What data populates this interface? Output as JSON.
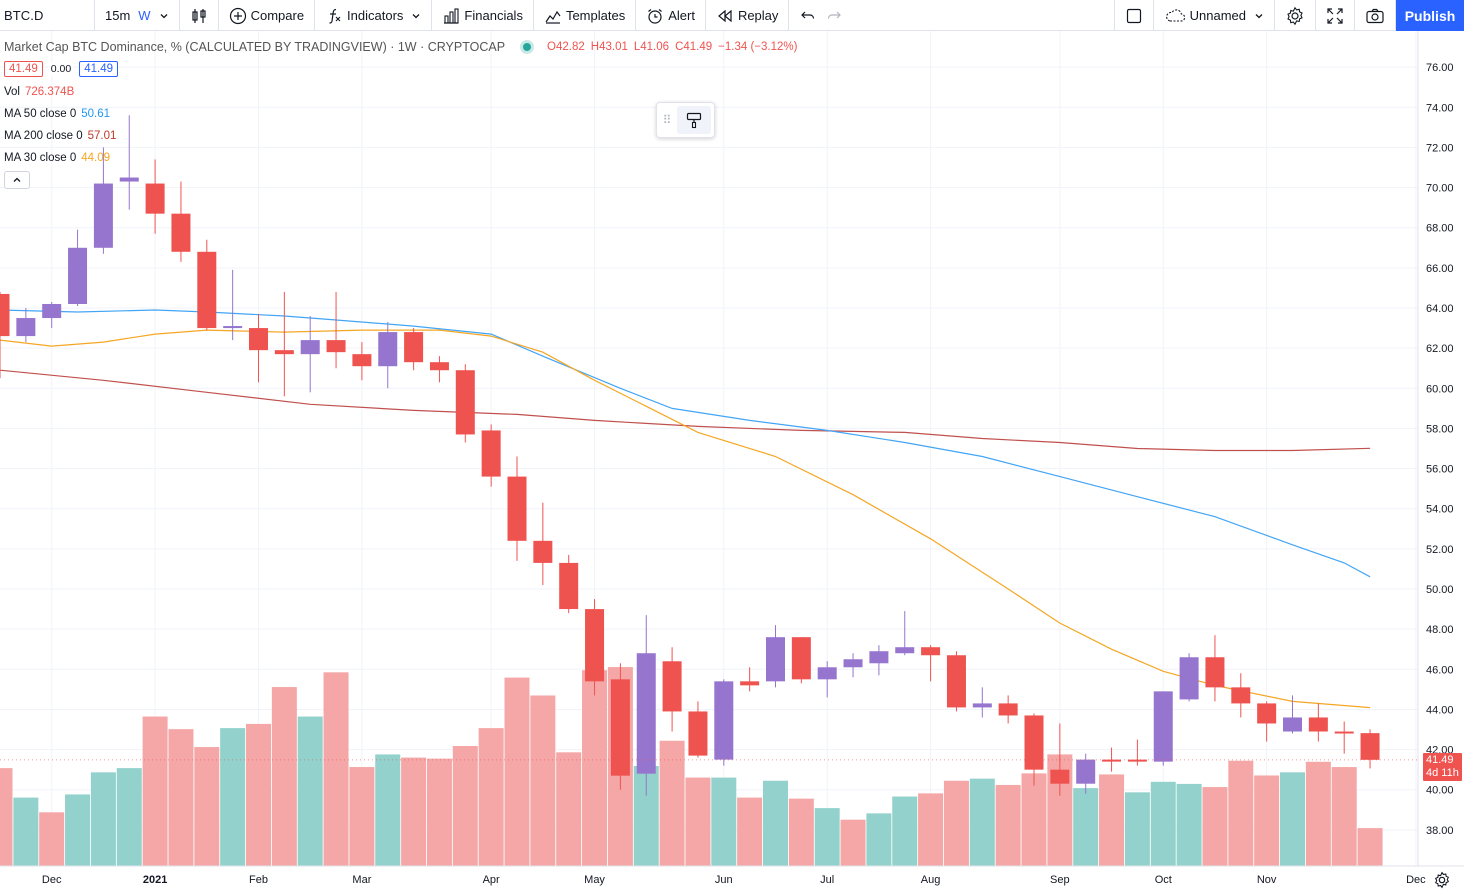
{
  "toolbar": {
    "symbol": "BTC.D",
    "interval": "15m",
    "interval_active": "W",
    "compare": "Compare",
    "indicators": "Indicators",
    "financials": "Financials",
    "templates": "Templates",
    "alert": "Alert",
    "replay": "Replay",
    "layout_name": "Unnamed",
    "publish": "Publish"
  },
  "legend": {
    "title": "Market Cap BTC Dominance, % (CALCULATED BY TRADINGVIEW) · 1W · CRYPTOCAP",
    "open": "O42.82",
    "high": "H43.01",
    "low": "L41.06",
    "close": "C41.49",
    "change": "−1.34 (−3.12%)",
    "sell_price": "41.49",
    "spread": "0.00",
    "buy_price": "41.49",
    "vol_label": "Vol",
    "vol_value": "726.374B",
    "ma50_label": "MA 50 close 0",
    "ma50_value": "50.61",
    "ma200_label": "MA 200 close 0",
    "ma200_value": "57.01",
    "ma30_label": "MA 30 close 0",
    "ma30_value": "44.09"
  },
  "axis": {
    "last_price": "41.49",
    "countdown": "4d 11h"
  },
  "colors": {
    "up": "#9575cd",
    "down": "#ef5350",
    "vol_up": "#93d2cc",
    "vol_down": "#f4a7a6",
    "ma50": "#42a5f5",
    "ma200": "#c0504d",
    "ma30": "#f5a623",
    "grid": "#f0f3fa"
  },
  "chart_data": {
    "type": "candlestick",
    "ylim": [
      36.2,
      77.8
    ],
    "y_ticks": [
      "38.00",
      "40.00",
      "42.00",
      "44.00",
      "46.00",
      "48.00",
      "50.00",
      "52.00",
      "54.00",
      "56.00",
      "58.00",
      "60.00",
      "62.00",
      "64.00",
      "66.00",
      "68.00",
      "70.00",
      "72.00",
      "74.00",
      "76.00"
    ],
    "x_labels": [
      "Dec",
      "2021",
      "Feb",
      "Mar",
      "Apr",
      "May",
      "Jun",
      "Jul",
      "Aug",
      "Sep",
      "Oct",
      "Nov",
      "Dec"
    ],
    "candles": [
      {
        "o": 64.7,
        "h": 64.8,
        "l": 60.5,
        "c": 62.6
      },
      {
        "o": 62.6,
        "h": 64.0,
        "l": 62.3,
        "c": 63.5
      },
      {
        "o": 63.5,
        "h": 64.3,
        "l": 63.0,
        "c": 64.2
      },
      {
        "o": 64.2,
        "h": 67.9,
        "l": 64.1,
        "c": 67.0
      },
      {
        "o": 67.0,
        "h": 72.0,
        "l": 66.7,
        "c": 70.2
      },
      {
        "o": 70.3,
        "h": 73.6,
        "l": 68.9,
        "c": 70.5
      },
      {
        "o": 70.2,
        "h": 71.4,
        "l": 67.7,
        "c": 68.7
      },
      {
        "o": 68.7,
        "h": 70.3,
        "l": 66.3,
        "c": 66.8
      },
      {
        "o": 66.8,
        "h": 67.4,
        "l": 62.9,
        "c": 63.0
      },
      {
        "o": 63.0,
        "h": 65.9,
        "l": 62.4,
        "c": 63.1
      },
      {
        "o": 63.0,
        "h": 63.7,
        "l": 60.3,
        "c": 61.9
      },
      {
        "o": 61.9,
        "h": 64.8,
        "l": 59.6,
        "c": 61.7
      },
      {
        "o": 61.7,
        "h": 63.6,
        "l": 59.8,
        "c": 62.4
      },
      {
        "o": 62.4,
        "h": 64.8,
        "l": 61.0,
        "c": 61.8
      },
      {
        "o": 61.7,
        "h": 62.3,
        "l": 60.4,
        "c": 61.1
      },
      {
        "o": 61.1,
        "h": 63.3,
        "l": 60.0,
        "c": 62.8
      },
      {
        "o": 62.8,
        "h": 63.0,
        "l": 60.9,
        "c": 61.3
      },
      {
        "o": 61.3,
        "h": 61.6,
        "l": 60.3,
        "c": 60.9
      },
      {
        "o": 60.9,
        "h": 61.2,
        "l": 57.3,
        "c": 57.7
      },
      {
        "o": 57.9,
        "h": 58.2,
        "l": 55.1,
        "c": 55.6
      },
      {
        "o": 55.6,
        "h": 56.6,
        "l": 51.4,
        "c": 52.4
      },
      {
        "o": 52.4,
        "h": 54.3,
        "l": 50.2,
        "c": 51.3
      },
      {
        "o": 51.3,
        "h": 51.7,
        "l": 48.8,
        "c": 49.0
      },
      {
        "o": 49.0,
        "h": 49.5,
        "l": 44.7,
        "c": 45.4
      },
      {
        "o": 45.5,
        "h": 46.3,
        "l": 40.0,
        "c": 40.7
      },
      {
        "o": 40.8,
        "h": 48.7,
        "l": 39.7,
        "c": 46.8
      },
      {
        "o": 46.4,
        "h": 47.1,
        "l": 42.9,
        "c": 43.9
      },
      {
        "o": 43.9,
        "h": 44.4,
        "l": 41.6,
        "c": 41.7
      },
      {
        "o": 41.5,
        "h": 45.5,
        "l": 41.2,
        "c": 45.4
      },
      {
        "o": 45.4,
        "h": 46.1,
        "l": 44.9,
        "c": 45.2
      },
      {
        "o": 45.4,
        "h": 48.2,
        "l": 45.1,
        "c": 47.6
      },
      {
        "o": 47.6,
        "h": 47.6,
        "l": 45.3,
        "c": 45.5
      },
      {
        "o": 45.5,
        "h": 46.4,
        "l": 44.6,
        "c": 46.1
      },
      {
        "o": 46.1,
        "h": 46.8,
        "l": 45.6,
        "c": 46.5
      },
      {
        "o": 46.3,
        "h": 47.2,
        "l": 45.7,
        "c": 46.9
      },
      {
        "o": 46.8,
        "h": 48.9,
        "l": 46.7,
        "c": 47.1
      },
      {
        "o": 47.1,
        "h": 47.2,
        "l": 45.4,
        "c": 46.7
      },
      {
        "o": 46.7,
        "h": 46.9,
        "l": 43.9,
        "c": 44.1
      },
      {
        "o": 44.1,
        "h": 45.1,
        "l": 43.6,
        "c": 44.3
      },
      {
        "o": 44.3,
        "h": 44.7,
        "l": 43.3,
        "c": 43.7
      },
      {
        "o": 43.7,
        "h": 43.8,
        "l": 40.2,
        "c": 41.0
      },
      {
        "o": 41.0,
        "h": 43.3,
        "l": 39.7,
        "c": 40.3
      },
      {
        "o": 40.3,
        "h": 41.8,
        "l": 39.8,
        "c": 41.5
      },
      {
        "o": 41.5,
        "h": 42.1,
        "l": 40.9,
        "c": 41.4
      },
      {
        "o": 41.5,
        "h": 42.5,
        "l": 41.2,
        "c": 41.4
      },
      {
        "o": 41.4,
        "h": 44.9,
        "l": 41.2,
        "c": 44.9
      },
      {
        "o": 44.5,
        "h": 46.8,
        "l": 44.4,
        "c": 46.6
      },
      {
        "o": 46.6,
        "h": 47.7,
        "l": 44.4,
        "c": 45.1
      },
      {
        "o": 45.1,
        "h": 45.8,
        "l": 43.6,
        "c": 44.3
      },
      {
        "o": 44.3,
        "h": 44.4,
        "l": 42.4,
        "c": 43.3
      },
      {
        "o": 42.9,
        "h": 44.7,
        "l": 42.8,
        "c": 43.6
      },
      {
        "o": 43.6,
        "h": 44.3,
        "l": 42.4,
        "c": 42.9
      },
      {
        "o": 42.9,
        "h": 43.4,
        "l": 41.8,
        "c": 42.8
      },
      {
        "o": 42.82,
        "h": 43.01,
        "l": 41.06,
        "c": 41.49
      }
    ],
    "volume": [
      {
        "v": 93,
        "up": false
      },
      {
        "v": 65,
        "up": true
      },
      {
        "v": 51,
        "up": false
      },
      {
        "v": 68,
        "up": true
      },
      {
        "v": 89,
        "up": true
      },
      {
        "v": 93,
        "up": true
      },
      {
        "v": 142,
        "up": false
      },
      {
        "v": 130,
        "up": false
      },
      {
        "v": 113,
        "up": false
      },
      {
        "v": 131,
        "up": true
      },
      {
        "v": 135,
        "up": false
      },
      {
        "v": 170,
        "up": false
      },
      {
        "v": 142,
        "up": true
      },
      {
        "v": 184,
        "up": false
      },
      {
        "v": 94,
        "up": false
      },
      {
        "v": 106,
        "up": true
      },
      {
        "v": 103,
        "up": false
      },
      {
        "v": 102,
        "up": false
      },
      {
        "v": 114,
        "up": false
      },
      {
        "v": 131,
        "up": false
      },
      {
        "v": 179,
        "up": false
      },
      {
        "v": 162,
        "up": false
      },
      {
        "v": 108,
        "up": false
      },
      {
        "v": 186,
        "up": false
      },
      {
        "v": 189,
        "up": false
      },
      {
        "v": 95,
        "up": true
      },
      {
        "v": 119,
        "up": false
      },
      {
        "v": 84,
        "up": false
      },
      {
        "v": 84,
        "up": true
      },
      {
        "v": 65,
        "up": false
      },
      {
        "v": 81,
        "up": true
      },
      {
        "v": 64,
        "up": false
      },
      {
        "v": 55,
        "up": true
      },
      {
        "v": 44,
        "up": false
      },
      {
        "v": 50,
        "up": true
      },
      {
        "v": 66,
        "up": true
      },
      {
        "v": 69,
        "up": false
      },
      {
        "v": 81,
        "up": false
      },
      {
        "v": 83,
        "up": true
      },
      {
        "v": 77,
        "up": false
      },
      {
        "v": 88,
        "up": false
      },
      {
        "v": 106,
        "up": false
      },
      {
        "v": 74,
        "up": true
      },
      {
        "v": 87,
        "up": false
      },
      {
        "v": 70,
        "up": true
      },
      {
        "v": 80,
        "up": true
      },
      {
        "v": 78,
        "up": true
      },
      {
        "v": 75,
        "up": false
      },
      {
        "v": 100,
        "up": false
      },
      {
        "v": 86,
        "up": false
      },
      {
        "v": 89,
        "up": true
      },
      {
        "v": 99,
        "up": false
      },
      {
        "v": 94,
        "up": false
      },
      {
        "v": 36,
        "up": false
      }
    ],
    "ma50": [
      [
        0,
        63.9
      ],
      [
        3,
        63.8
      ],
      [
        6,
        63.9
      ],
      [
        8,
        63.8
      ],
      [
        11,
        63.6
      ],
      [
        13,
        63.4
      ],
      [
        16,
        63.1
      ],
      [
        19,
        62.7
      ],
      [
        21,
        61.6
      ],
      [
        24,
        60.0
      ],
      [
        26,
        59.0
      ],
      [
        29,
        58.4
      ],
      [
        32,
        57.9
      ],
      [
        35,
        57.3
      ],
      [
        38,
        56.6
      ],
      [
        41,
        55.6
      ],
      [
        44,
        54.6
      ],
      [
        47,
        53.6
      ],
      [
        50,
        52.2
      ],
      [
        52,
        51.3
      ],
      [
        53,
        50.61
      ]
    ],
    "ma200": [
      [
        0,
        60.9
      ],
      [
        4,
        60.4
      ],
      [
        8,
        59.8
      ],
      [
        12,
        59.2
      ],
      [
        16,
        58.9
      ],
      [
        20,
        58.7
      ],
      [
        23,
        58.4
      ],
      [
        27,
        58.1
      ],
      [
        31,
        57.9
      ],
      [
        35,
        57.8
      ],
      [
        38,
        57.5
      ],
      [
        41,
        57.3
      ],
      [
        44,
        57.0
      ],
      [
        47,
        56.9
      ],
      [
        50,
        56.9
      ],
      [
        53,
        57.01
      ]
    ],
    "ma30": [
      [
        0,
        62.4
      ],
      [
        2,
        62.1
      ],
      [
        4,
        62.3
      ],
      [
        6,
        62.7
      ],
      [
        8,
        62.9
      ],
      [
        11,
        62.8
      ],
      [
        14,
        62.9
      ],
      [
        17,
        62.9
      ],
      [
        19,
        62.6
      ],
      [
        21,
        61.8
      ],
      [
        23,
        60.4
      ],
      [
        25,
        59.1
      ],
      [
        27,
        57.8
      ],
      [
        30,
        56.6
      ],
      [
        33,
        54.7
      ],
      [
        36,
        52.5
      ],
      [
        39,
        50.0
      ],
      [
        41,
        48.3
      ],
      [
        43,
        47.0
      ],
      [
        45,
        45.9
      ],
      [
        47,
        45.2
      ],
      [
        50,
        44.4
      ],
      [
        53,
        44.09
      ]
    ]
  }
}
